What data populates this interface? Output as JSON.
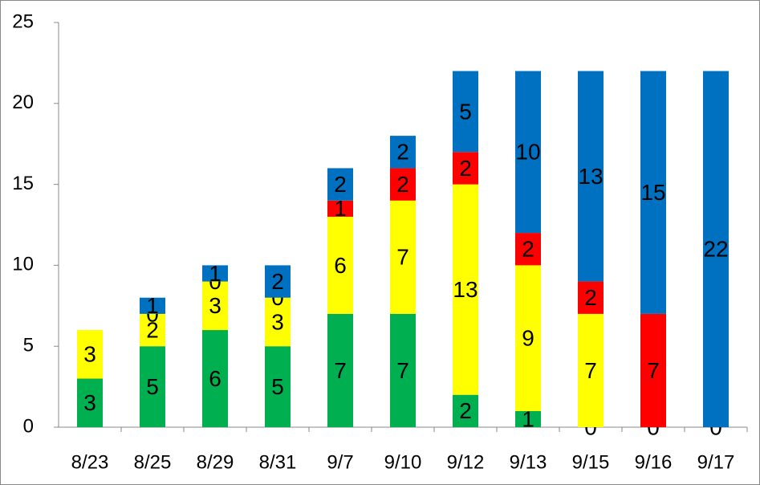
{
  "chart_data": {
    "type": "stacked_bar",
    "categories": [
      "8/23",
      "8/25",
      "8/29",
      "8/31",
      "9/7",
      "9/10",
      "9/12",
      "9/13",
      "9/15",
      "9/16",
      "9/17"
    ],
    "series": [
      {
        "color": "#00b050",
        "values": [
          3,
          5,
          6,
          5,
          7,
          7,
          2,
          1,
          0,
          0,
          0
        ]
      },
      {
        "color": "#ffff00",
        "values": [
          3,
          2,
          3,
          3,
          6,
          7,
          13,
          9,
          7,
          null,
          null
        ]
      },
      {
        "color": "#ff0000",
        "values": [
          null,
          0,
          0,
          0,
          1,
          2,
          2,
          2,
          2,
          7,
          null
        ]
      },
      {
        "color": "#0070c0",
        "values": [
          null,
          1,
          1,
          2,
          2,
          2,
          5,
          10,
          13,
          15,
          22
        ]
      }
    ],
    "ylim": [
      0,
      25
    ],
    "yticks": [
      0,
      5,
      10,
      15,
      20,
      25
    ],
    "grid": false
  }
}
